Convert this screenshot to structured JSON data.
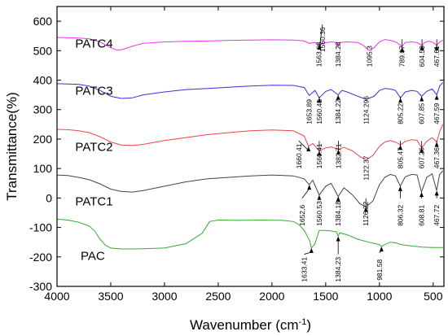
{
  "chart_data": {
    "type": "line",
    "title": "",
    "xlabel": "Wavenumber (cm",
    "xlabel_sup": "-1",
    "xlabel_tail": ")",
    "ylabel": "Transmittance(%)",
    "xlim": [
      4000,
      400
    ],
    "ylim": [
      -300,
      650
    ],
    "x_ticks": [
      4000,
      3500,
      3000,
      2500,
      2000,
      1500,
      1000,
      500
    ],
    "y_ticks": [
      -300,
      -200,
      -100,
      0,
      100,
      200,
      300,
      400,
      500,
      600
    ],
    "grid": false,
    "legend": "none",
    "series": [
      {
        "name": "PATC4",
        "color": "#ee33ee",
        "x": [
          4000,
          3800,
          3700,
          3600,
          3500,
          3450,
          3400,
          3300,
          3200,
          3000,
          2800,
          2600,
          2400,
          2200,
          2000,
          1800,
          1700,
          1653,
          1600,
          1563,
          1520,
          1450,
          1400,
          1384,
          1370,
          1300,
          1200,
          1150,
          1095,
          1050,
          1000,
          950,
          900,
          850,
          789,
          760,
          700,
          650,
          604,
          580,
          540,
          500,
          467,
          440,
          410
        ],
        "values": [
          545,
          543,
          540,
          530,
          510,
          503,
          503,
          515,
          525,
          530,
          532,
          533,
          535,
          536,
          537,
          536,
          533,
          525,
          528,
          520,
          526,
          530,
          528,
          515,
          528,
          530,
          528,
          518,
          500,
          510,
          530,
          538,
          535,
          530,
          515,
          528,
          530,
          528,
          518,
          528,
          532,
          528,
          518,
          530,
          535
        ]
      },
      {
        "name": "PATC3",
        "color": "#3333dd",
        "x": [
          4000,
          3800,
          3700,
          3600,
          3500,
          3400,
          3300,
          3200,
          3000,
          2800,
          2600,
          2400,
          2200,
          2000,
          1800,
          1700,
          1653,
          1600,
          1560,
          1500,
          1450,
          1384,
          1350,
          1300,
          1200,
          1124,
          1050,
          1000,
          950,
          900,
          850,
          805,
          760,
          700,
          650,
          607,
          560,
          510,
          467,
          440,
          410
        ],
        "values": [
          388,
          386,
          380,
          365,
          345,
          338,
          340,
          350,
          360,
          368,
          372,
          376,
          380,
          383,
          382,
          375,
          348,
          365,
          340,
          362,
          368,
          350,
          365,
          360,
          345,
          335,
          345,
          365,
          372,
          370,
          365,
          340,
          360,
          365,
          362,
          345,
          362,
          370,
          350,
          380,
          392
        ]
      },
      {
        "name": "PATC2",
        "color": "#ee4444",
        "x": [
          4000,
          3900,
          3800,
          3700,
          3600,
          3500,
          3400,
          3300,
          3200,
          3000,
          2800,
          2600,
          2400,
          2200,
          2000,
          1800,
          1700,
          1660,
          1620,
          1560,
          1500,
          1450,
          1382,
          1330,
          1250,
          1180,
          1122,
          1060,
          1000,
          950,
          900,
          850,
          805,
          760,
          700,
          650,
          607,
          560,
          510,
          467,
          440,
          410
        ],
        "values": [
          233,
          232,
          228,
          222,
          208,
          190,
          180,
          178,
          182,
          195,
          205,
          215,
          222,
          228,
          231,
          228,
          210,
          175,
          185,
          160,
          170,
          173,
          165,
          172,
          160,
          140,
          130,
          145,
          175,
          190,
          195,
          190,
          180,
          192,
          198,
          196,
          170,
          192,
          205,
          190,
          225,
          250
        ]
      },
      {
        "name": "PATC1",
        "color": "#444444",
        "x": [
          4000,
          3900,
          3800,
          3700,
          3600,
          3500,
          3400,
          3300,
          3200,
          3000,
          2800,
          2600,
          2400,
          2200,
          2000,
          1800,
          1700,
          1653,
          1620,
          1560,
          1500,
          1450,
          1384,
          1330,
          1250,
          1180,
          1126,
          1060,
          1000,
          950,
          900,
          850,
          806,
          760,
          700,
          650,
          609,
          560,
          510,
          468,
          440,
          410
        ],
        "values": [
          78,
          76,
          70,
          62,
          48,
          30,
          22,
          20,
          25,
          40,
          55,
          65,
          70,
          75,
          78,
          75,
          65,
          45,
          60,
          10,
          40,
          50,
          5,
          35,
          10,
          -20,
          -30,
          -10,
          45,
          70,
          80,
          75,
          40,
          72,
          80,
          78,
          20,
          70,
          82,
          25,
          80,
          92
        ]
      },
      {
        "name": "PAC",
        "color": "#33aa33",
        "x": [
          4000,
          3900,
          3800,
          3700,
          3650,
          3600,
          3550,
          3500,
          3400,
          3300,
          3200,
          3000,
          2800,
          2650,
          2580,
          2500,
          2300,
          2100,
          1900,
          1800,
          1750,
          1700,
          1650,
          1633,
          1600,
          1560,
          1500,
          1450,
          1400,
          1384,
          1370,
          1300,
          1200,
          1100,
          1000,
          981,
          950,
          900,
          850,
          800,
          700,
          600,
          500,
          410
        ],
        "values": [
          -72,
          -75,
          -82,
          -95,
          -112,
          -140,
          -160,
          -170,
          -173,
          -173,
          -172,
          -170,
          -155,
          -120,
          -80,
          -75,
          -76,
          -75,
          -76,
          -80,
          -90,
          -110,
          -145,
          -170,
          -155,
          -110,
          -110,
          -112,
          -115,
          -130,
          -118,
          -125,
          -140,
          -150,
          -158,
          -165,
          -158,
          -150,
          -152,
          -158,
          -163,
          -167,
          -168,
          -168
        ]
      }
    ],
    "series_labels": [
      {
        "text": "PATC4",
        "x": 3830,
        "y": 510
      },
      {
        "text": "PATC3",
        "x": 3830,
        "y": 350
      },
      {
        "text": "PATC2",
        "x": 3830,
        "y": 160
      },
      {
        "text": "PATC1",
        "x": 3830,
        "y": -25
      },
      {
        "text": "PAC",
        "x": 3780,
        "y": -210
      }
    ],
    "peak_annotations": [
      {
        "label": "1563.08",
        "x": 1563,
        "text_y": 445,
        "arrow": null
      },
      {
        "label": "1560.36",
        "x": 1530,
        "text_y": 495,
        "arrow": [
          1560,
          520
        ]
      },
      {
        "label": "1384.28",
        "x": 1384,
        "text_y": 445,
        "arrow": null
      },
      {
        "label": "1095.3",
        "x": 1095,
        "text_y": 445,
        "arrow": null
      },
      {
        "label": "789.07",
        "x": 789,
        "text_y": 445,
        "arrow": [
          789,
          512
        ]
      },
      {
        "label": "604.53",
        "x": 604,
        "text_y": 445,
        "arrow": [
          604,
          518
        ]
      },
      {
        "label": "467.61",
        "x": 467,
        "text_y": 445,
        "arrow": [
          467,
          518
        ]
      },
      {
        "label": "1653.89",
        "x": 1653,
        "text_y": 250,
        "arrow": null
      },
      {
        "label": "1560.45",
        "x": 1560,
        "text_y": 250,
        "arrow": [
          1560,
          340
        ]
      },
      {
        "label": "1384.22",
        "x": 1384,
        "text_y": 250,
        "arrow": [
          1384,
          350
        ]
      },
      {
        "label": "1124.296",
        "x": 1124,
        "text_y": 250,
        "arrow": null
      },
      {
        "label": "805.22",
        "x": 805,
        "text_y": 250,
        "arrow": [
          805,
          340
        ]
      },
      {
        "label": "607.85",
        "x": 607,
        "text_y": 250,
        "arrow": [
          607,
          345
        ]
      },
      {
        "label": "467.59",
        "x": 467,
        "text_y": 250,
        "arrow": [
          467,
          350
        ]
      },
      {
        "label": "1660.41",
        "x": 1750,
        "text_y": 100,
        "arrow": [
          1660,
          175
        ]
      },
      {
        "label": "1560.41",
        "x": 1560,
        "text_y": 100,
        "arrow": [
          1560,
          160
        ]
      },
      {
        "label": "1382.71",
        "x": 1382,
        "text_y": 100,
        "arrow": [
          1382,
          165
        ]
      },
      {
        "label": "1122.37",
        "x": 1122,
        "text_y": 60,
        "arrow": null
      },
      {
        "label": "805.47",
        "x": 805,
        "text_y": 100,
        "arrow": [
          805,
          180
        ]
      },
      {
        "label": "607.26",
        "x": 607,
        "text_y": 100,
        "arrow": [
          607,
          170
        ]
      },
      {
        "label": "467.36",
        "x": 467,
        "text_y": 100,
        "arrow": [
          467,
          190
        ]
      },
      {
        "label": "1652.6",
        "x": 1720,
        "text_y": -95,
        "arrow": [
          1653,
          45
        ]
      },
      {
        "label": "1560.53",
        "x": 1560,
        "text_y": -95,
        "arrow": [
          1560,
          10
        ]
      },
      {
        "label": "1384.18",
        "x": 1384,
        "text_y": -95,
        "arrow": [
          1384,
          5
        ]
      },
      {
        "label": "1126.22",
        "x": 1126,
        "text_y": -95,
        "arrow": [
          1126,
          -30
        ]
      },
      {
        "label": "806.32",
        "x": 806,
        "text_y": -95,
        "arrow": [
          806,
          40
        ]
      },
      {
        "label": "608.81",
        "x": 608,
        "text_y": -95,
        "arrow": [
          608,
          20
        ]
      },
      {
        "label": "467.72",
        "x": 467,
        "text_y": -95,
        "arrow": [
          467,
          25
        ]
      },
      {
        "label": "1633.41",
        "x": 1700,
        "text_y": -285,
        "arrow": [
          1633,
          -170
        ]
      },
      {
        "label": "1384.23",
        "x": 1384,
        "text_y": -285,
        "arrow": [
          1384,
          -130
        ]
      },
      {
        "label": "981.58",
        "x": 1000,
        "text_y": -280,
        "arrow": [
          981,
          -165
        ]
      }
    ]
  }
}
